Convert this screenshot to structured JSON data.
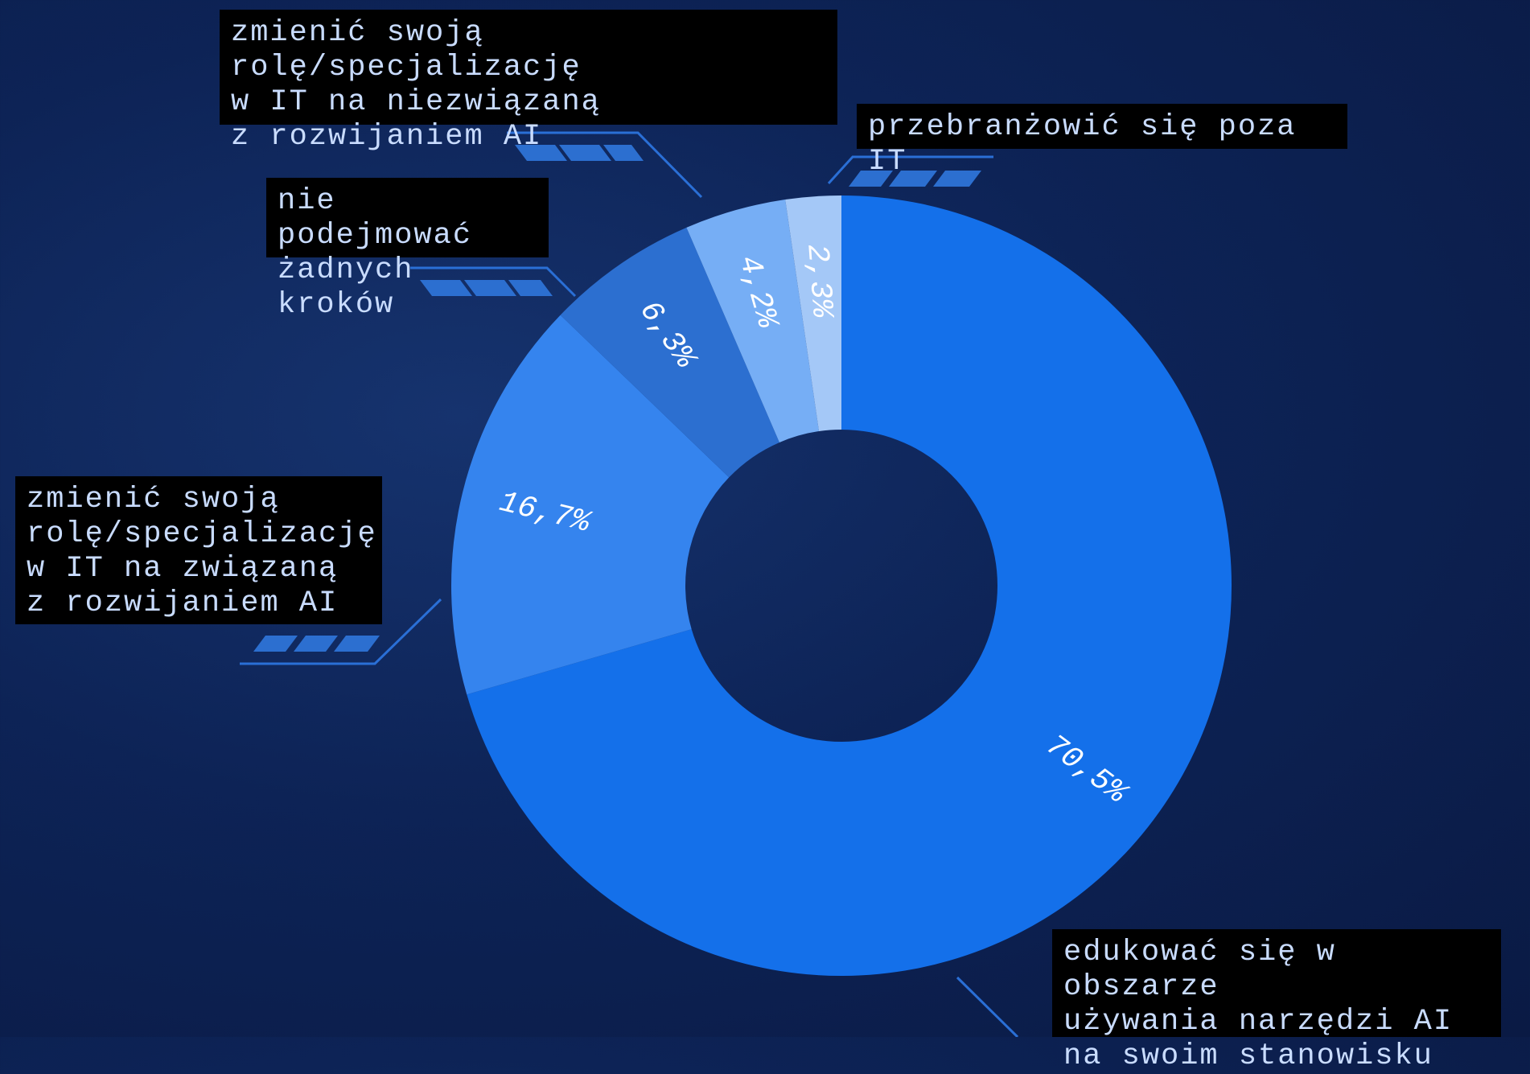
{
  "chart_data": {
    "type": "pie",
    "donut": true,
    "categories": [
      "edukować się w obszarze\nużywania narzędzi AI\nna swoim stanowisku",
      "zmienić swoją\nrolę/specjalizację\nw IT na związaną\nz rozwijaniem AI",
      "nie podejmować\nżadnych kroków",
      "zmienić swoją rolę/specjalizację\nw IT na niezwiązaną\nz rozwijaniem AI",
      "przebranżowić się poza IT"
    ],
    "values": [
      70.5,
      16.7,
      6.3,
      4.2,
      2.3
    ],
    "value_labels": [
      "70,5%",
      "16,7%",
      "6,3%",
      "4,2%",
      "2,3%"
    ],
    "colors": [
      "#1470ea",
      "#3584ee",
      "#2c6fd0",
      "#76aef5",
      "#a4c8f7"
    ]
  }
}
